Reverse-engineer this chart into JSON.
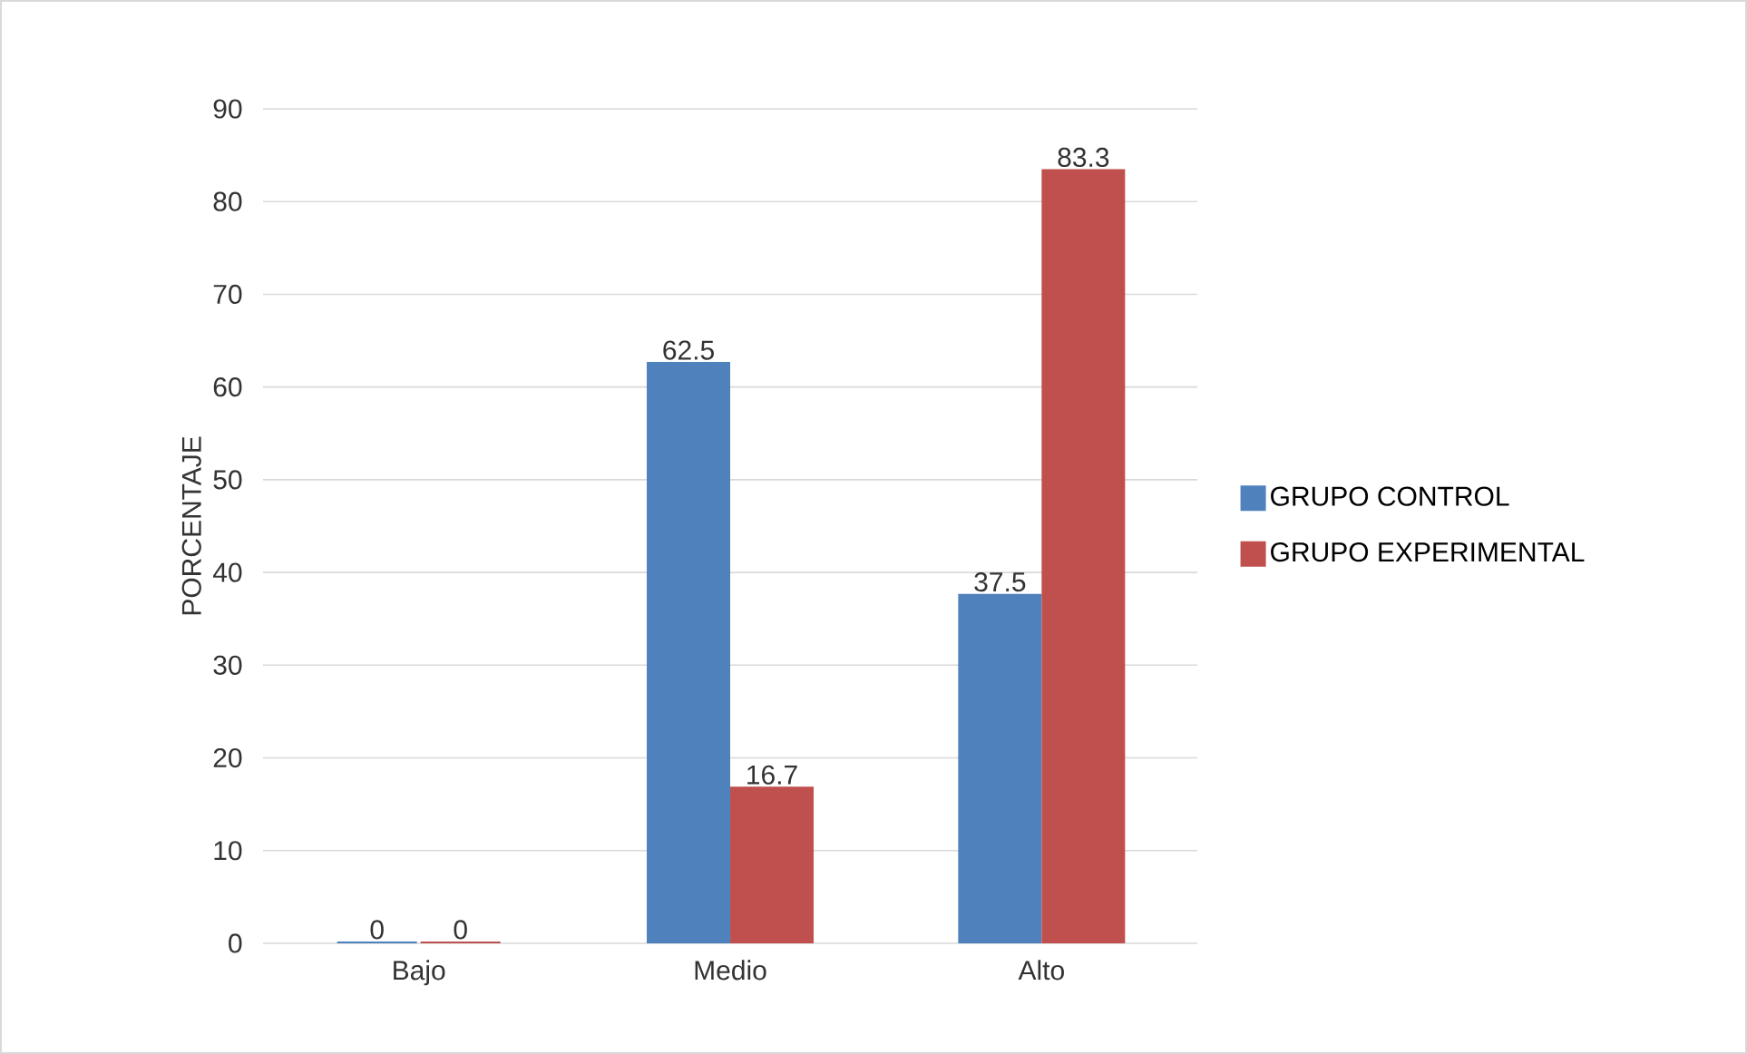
{
  "chart_data": {
    "type": "bar",
    "ylabel": "PORCENTAJE",
    "categories": [
      "Bajo",
      "Medio",
      "Alto"
    ],
    "series": [
      {
        "name": "GRUPO CONTROL",
        "color": "#4f81bd",
        "values": [
          0,
          62.5,
          37.5
        ]
      },
      {
        "name": "GRUPO EXPERIMENTAL",
        "color": "#c0504d",
        "values": [
          0,
          16.7,
          83.3
        ]
      }
    ],
    "ylim": [
      0,
      90
    ],
    "yticks": [
      0,
      10,
      20,
      30,
      40,
      50,
      60,
      70,
      80,
      90
    ],
    "grid": "y",
    "legend": "right",
    "data_labels": true
  }
}
